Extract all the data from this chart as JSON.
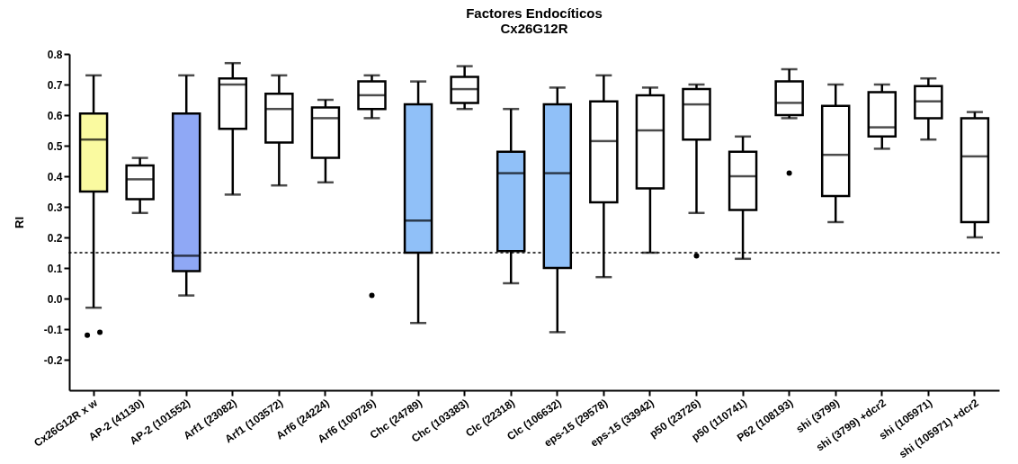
{
  "chart_data": {
    "type": "box",
    "title": "Factores Endocíticos",
    "subtitle": "Cx26G12R",
    "ylabel": "RI",
    "categories": [
      "Cx26G12R x w",
      "AP-2 (41130)",
      "AP-2 (101552)",
      "Arf1 (23082)",
      "Arf1 (103572)",
      "Arf6 (24224)",
      "Arf6 (100726)",
      "Chc (24789)",
      "Chc (103383)",
      "Clc (22318)",
      "Clc (106632)",
      "eps-15 (29578)",
      "eps-15 (33942)",
      "p50 (23726)",
      "p50 (110741)",
      "P62 (108193)",
      "shi (3799)",
      "shi (3799) +dcr2",
      "shi (105971)",
      "shi (105971) +dcr2"
    ],
    "colors": [
      "#fafaa0",
      "#ffffff",
      "#8fa8f5",
      "#ffffff",
      "#ffffff",
      "#ffffff",
      "#ffffff",
      "#90c0f8",
      "#ffffff",
      "#90c0f8",
      "#90c0f8",
      "#ffffff",
      "#ffffff",
      "#ffffff",
      "#ffffff",
      "#ffffff",
      "#ffffff",
      "#ffffff",
      "#ffffff",
      "#ffffff"
    ],
    "boxes": [
      {
        "low": -0.03,
        "q1": 0.35,
        "median": 0.52,
        "q3": 0.605,
        "high": 0.73,
        "outliers": [
          -0.12,
          -0.11
        ]
      },
      {
        "low": 0.28,
        "q1": 0.325,
        "median": 0.39,
        "q3": 0.435,
        "high": 0.46
      },
      {
        "low": 0.01,
        "q1": 0.09,
        "median": 0.14,
        "q3": 0.605,
        "high": 0.73
      },
      {
        "low": 0.34,
        "q1": 0.555,
        "median": 0.7,
        "q3": 0.72,
        "high": 0.77
      },
      {
        "low": 0.37,
        "q1": 0.51,
        "median": 0.62,
        "q3": 0.67,
        "high": 0.73
      },
      {
        "low": 0.38,
        "q1": 0.46,
        "median": 0.59,
        "q3": 0.625,
        "high": 0.65
      },
      {
        "low": 0.59,
        "q1": 0.62,
        "median": 0.665,
        "q3": 0.71,
        "high": 0.73,
        "outliers": [
          0.01
        ]
      },
      {
        "low": -0.08,
        "q1": 0.15,
        "median": 0.255,
        "q3": 0.635,
        "high": 0.71
      },
      {
        "low": 0.62,
        "q1": 0.64,
        "median": 0.685,
        "q3": 0.725,
        "high": 0.76
      },
      {
        "low": 0.05,
        "q1": 0.155,
        "median": 0.41,
        "q3": 0.48,
        "high": 0.62
      },
      {
        "low": -0.11,
        "q1": 0.1,
        "median": 0.41,
        "q3": 0.635,
        "high": 0.69
      },
      {
        "low": 0.07,
        "q1": 0.315,
        "median": 0.515,
        "q3": 0.645,
        "high": 0.73
      },
      {
        "low": 0.15,
        "q1": 0.36,
        "median": 0.55,
        "q3": 0.665,
        "high": 0.69
      },
      {
        "low": 0.28,
        "q1": 0.52,
        "median": 0.635,
        "q3": 0.685,
        "high": 0.7,
        "outliers": [
          0.14
        ]
      },
      {
        "low": 0.13,
        "q1": 0.29,
        "median": 0.4,
        "q3": 0.48,
        "high": 0.53
      },
      {
        "low": 0.59,
        "q1": 0.6,
        "median": 0.64,
        "q3": 0.71,
        "high": 0.75,
        "outliers": [
          0.41
        ]
      },
      {
        "low": 0.25,
        "q1": 0.335,
        "median": 0.47,
        "q3": 0.63,
        "high": 0.7
      },
      {
        "low": 0.49,
        "q1": 0.53,
        "median": 0.56,
        "q3": 0.675,
        "high": 0.7
      },
      {
        "low": 0.52,
        "q1": 0.59,
        "median": 0.645,
        "q3": 0.695,
        "high": 0.72
      },
      {
        "low": 0.2,
        "q1": 0.25,
        "median": 0.465,
        "q3": 0.59,
        "high": 0.61
      }
    ],
    "ylim": [
      -0.3,
      0.8
    ],
    "yticks": [
      -0.2,
      -0.1,
      {
        "value": 0,
        "label": "0.0"
      },
      0.1,
      0.2,
      0.3,
      0.4,
      0.5,
      0.6,
      0.7,
      0.8
    ],
    "ref_lines": [
      {
        "axis": "y",
        "value": 0.15,
        "line_style": "dotted",
        "color": "#000000"
      }
    ],
    "grid": false
  }
}
